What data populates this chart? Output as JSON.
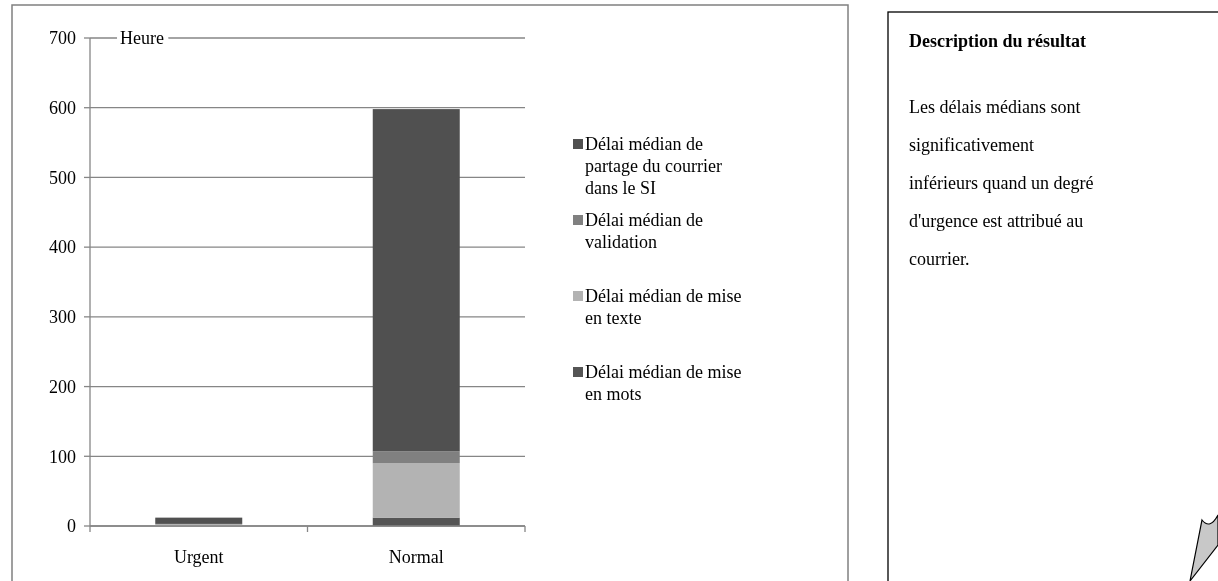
{
  "chart_data": {
    "type": "bar",
    "stacked": true,
    "ylabel": "Heure",
    "categories": [
      "Urgent",
      "Normal"
    ],
    "series": [
      {
        "name": "Délai médian de mise en mots",
        "color": "#555555",
        "values": [
          null,
          12
        ]
      },
      {
        "name": "Délai médian de mise en texte",
        "color": "#b3b3b3",
        "values": [
          3,
          78
        ]
      },
      {
        "name": "Délai médian de validation",
        "color": "#808080",
        "values": [
          null,
          17
        ]
      },
      {
        "name": "Délai médian de partage du courrier dans le SI",
        "color": "#505050",
        "values": [
          9,
          491
        ]
      }
    ],
    "ylim": [
      0,
      700
    ],
    "yticks": [
      0,
      100,
      200,
      300,
      400,
      500,
      600,
      700
    ],
    "grid": "y",
    "legend": "right",
    "annotations": [
      "Description du résultat",
      "Les délais médians sont significativement inférieurs quand un degré d'urgence est attribué au courrier."
    ]
  }
}
